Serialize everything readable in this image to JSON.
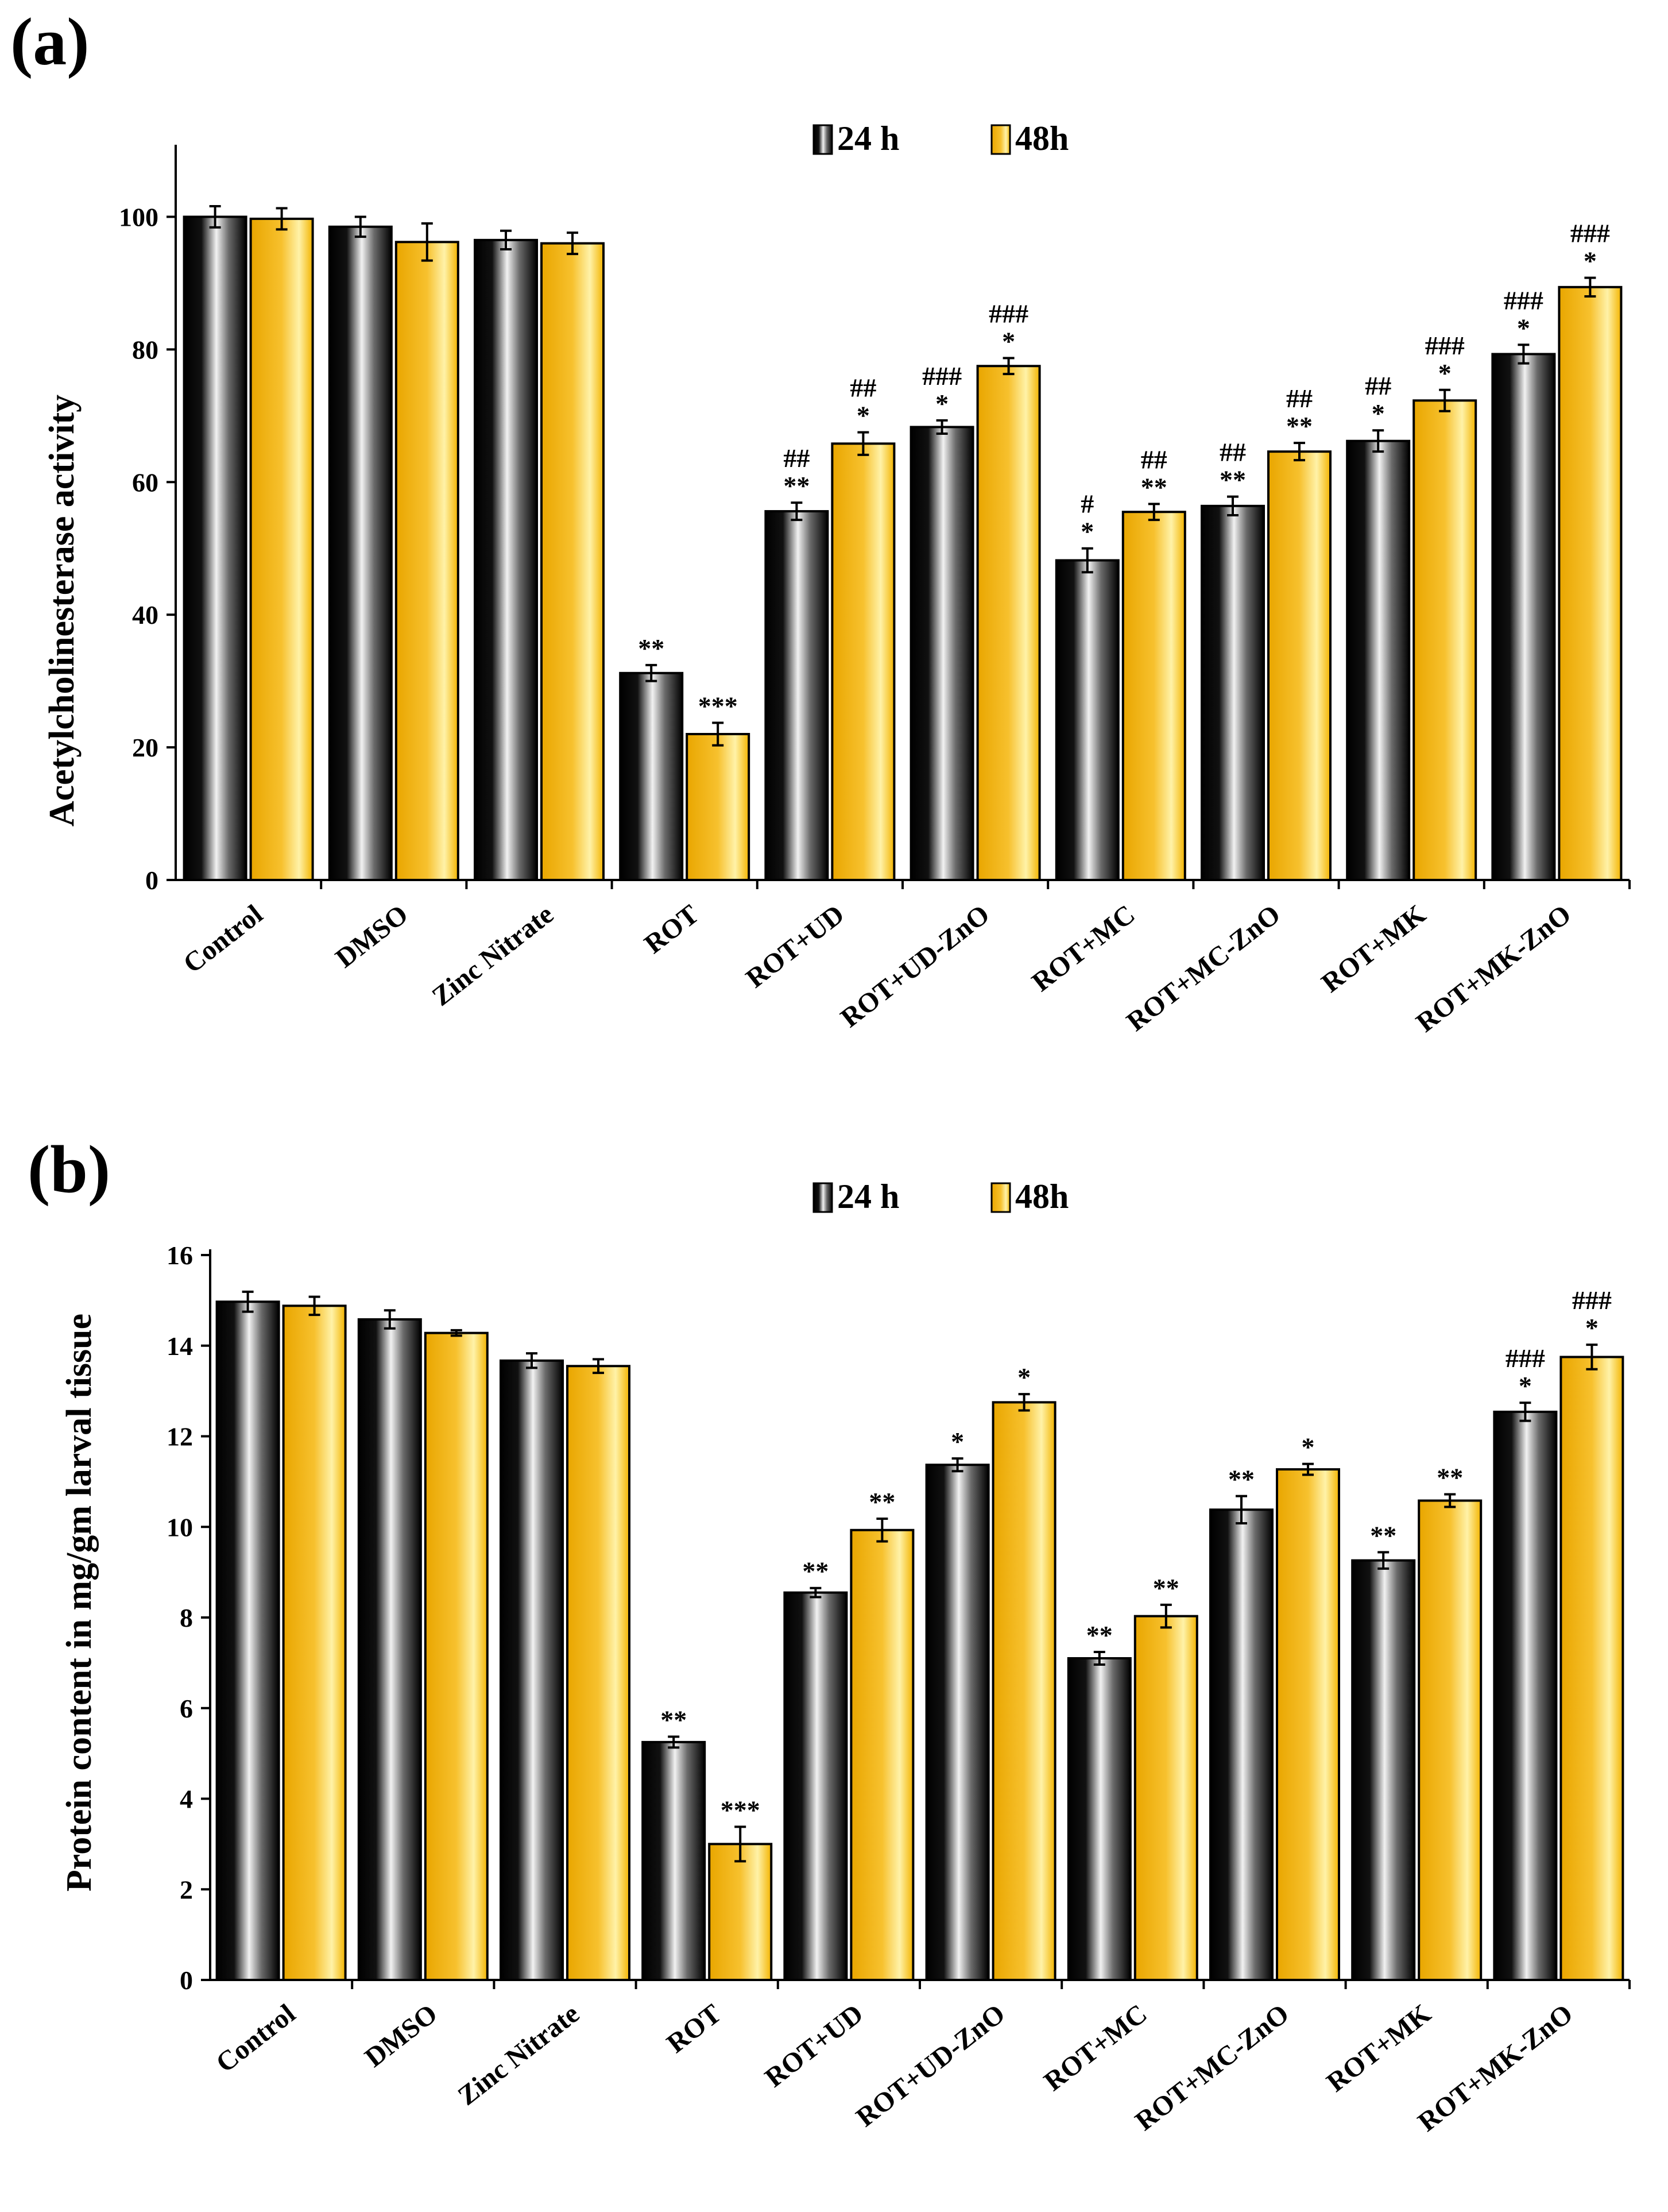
{
  "colors": {
    "series_24h": "#000000",
    "series_48h": "#f5b800",
    "axis": "#000000"
  },
  "chart_data": [
    {
      "type": "bar",
      "panel_label": "(a)",
      "title": "",
      "xlabel": "",
      "ylabel": "Acetylcholinesterase activity",
      "ylim": [
        0,
        110
      ],
      "yticks": [
        0,
        20,
        40,
        60,
        80,
        100
      ],
      "grid": false,
      "legend": "top-center",
      "categories": [
        "Control",
        "DMSO",
        "Zinc Nitrate",
        "ROT",
        "ROT+UD",
        "ROT+UD-ZnO",
        "ROT+MC",
        "ROT+MC-ZnO",
        "ROT+MK",
        "ROT+MK-ZnO"
      ],
      "series": [
        {
          "name": "24 h",
          "values": [
            100,
            98.5,
            96.5,
            31.2,
            55.6,
            68.3,
            48.2,
            56.4,
            66.2,
            79.3
          ],
          "errors": [
            1.6,
            1.5,
            1.4,
            1.2,
            1.3,
            1.0,
            1.8,
            1.4,
            1.6,
            1.4
          ],
          "labels": [
            [],
            [],
            [],
            [
              "**"
            ],
            [
              "##",
              "**"
            ],
            [
              "###",
              "*"
            ],
            [
              "#",
              "*"
            ],
            [
              "##",
              "**"
            ],
            [
              "##",
              "*"
            ],
            [
              "###",
              "*"
            ]
          ]
        },
        {
          "name": "48h",
          "values": [
            99.7,
            96.2,
            96.0,
            22.0,
            65.8,
            77.5,
            55.5,
            64.6,
            72.3,
            89.4
          ],
          "errors": [
            1.6,
            2.8,
            1.6,
            1.7,
            1.7,
            1.2,
            1.2,
            1.3,
            1.6,
            1.4
          ],
          "labels": [
            [],
            [],
            [],
            [
              "***"
            ],
            [
              "##",
              "*"
            ],
            [
              "###",
              "*"
            ],
            [
              "##",
              "**"
            ],
            [
              "##",
              "**"
            ],
            [
              "###",
              "*"
            ],
            [
              "###",
              "*"
            ]
          ]
        }
      ]
    },
    {
      "type": "bar",
      "panel_label": "(b)",
      "title": "",
      "xlabel": "",
      "ylabel": "Protein content in mg/gm larval tissue",
      "ylim": [
        0,
        16
      ],
      "yticks": [
        0,
        2,
        4,
        6,
        8,
        10,
        12,
        14,
        16
      ],
      "grid": false,
      "legend": "top-center",
      "categories": [
        "Control",
        "DMSO",
        "Zinc Nitrate",
        "ROT",
        "ROT+UD",
        "ROT+UD-ZnO",
        "ROT+MC",
        "ROT+MC-ZnO",
        "ROT+MK",
        "ROT+MK-ZnO"
      ],
      "series": [
        {
          "name": "24 h",
          "values": [
            14.97,
            14.58,
            13.67,
            5.25,
            8.55,
            11.37,
            7.1,
            10.38,
            9.26,
            12.54
          ],
          "errors": [
            0.22,
            0.2,
            0.16,
            0.12,
            0.1,
            0.14,
            0.14,
            0.3,
            0.18,
            0.2
          ],
          "labels": [
            [],
            [],
            [],
            [
              "**"
            ],
            [
              "**"
            ],
            [
              "*"
            ],
            [
              "**"
            ],
            [
              "**"
            ],
            [
              "**"
            ],
            [
              "###",
              "*"
            ]
          ]
        },
        {
          "name": "48h",
          "values": [
            14.88,
            14.28,
            13.55,
            3.0,
            9.93,
            12.75,
            8.03,
            11.27,
            10.58,
            13.75
          ],
          "errors": [
            0.2,
            0.06,
            0.15,
            0.38,
            0.25,
            0.18,
            0.25,
            0.12,
            0.14,
            0.27
          ],
          "labels": [
            [],
            [],
            [],
            [
              "***"
            ],
            [
              "**"
            ],
            [
              "*"
            ],
            [
              "**"
            ],
            [
              "*"
            ],
            [
              "**"
            ],
            [
              "###",
              "*"
            ]
          ]
        }
      ]
    }
  ]
}
